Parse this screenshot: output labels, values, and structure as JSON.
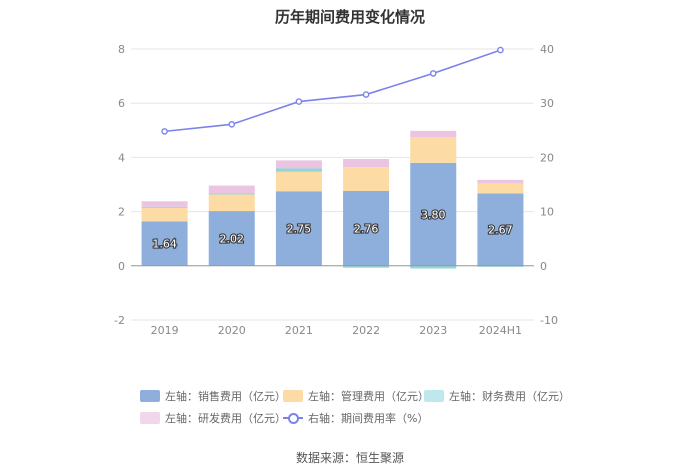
{
  "chart_data": {
    "type": "bar",
    "title": "历年期间费用变化情况",
    "categories": [
      "2019",
      "2020",
      "2021",
      "2022",
      "2023",
      "2024H1"
    ],
    "left_axis": {
      "ylim": [
        -2,
        8
      ],
      "ticks": [
        "-2",
        "0",
        "2",
        "4",
        "6",
        "8"
      ]
    },
    "right_axis": {
      "ylim": [
        -10,
        40
      ],
      "ticks": [
        "-10",
        "0",
        "10",
        "20",
        "30",
        "40"
      ]
    },
    "series": [
      {
        "name": "左轴：销售费用（亿元）",
        "axis": "left",
        "stack": true,
        "color": "#8eaedc",
        "values": [
          1.64,
          2.02,
          2.75,
          2.76,
          3.8,
          2.67
        ],
        "labels": [
          "1.64",
          "2.02",
          "2.75",
          "2.76",
          "3.80",
          "2.67"
        ]
      },
      {
        "name": "左轴：管理费用（亿元）",
        "axis": "left",
        "stack": true,
        "color": "#fcdca4",
        "values": [
          0.52,
          0.62,
          0.72,
          0.88,
          0.94,
          0.37
        ]
      },
      {
        "name": "左轴：财务费用（亿元）",
        "axis": "left",
        "stack": true,
        "color": "#8ed8d8",
        "values": [
          0.02,
          0.03,
          0.12,
          -0.07,
          -0.1,
          -0.03
        ]
      },
      {
        "name": "左轴：研发费用（亿元）",
        "axis": "left",
        "stack": true,
        "color": "#ebc4e2",
        "values": [
          0.2,
          0.29,
          0.3,
          0.3,
          0.24,
          0.13
        ]
      },
      {
        "name": "右轴：期间费用率（%）",
        "axis": "right",
        "type": "line",
        "color": "#7b83ea",
        "values": [
          24.8,
          26.1,
          30.3,
          31.6,
          35.5,
          39.8
        ]
      }
    ],
    "grid": true,
    "legend_position": "bottom"
  },
  "source": "数据来源：恒生聚源"
}
